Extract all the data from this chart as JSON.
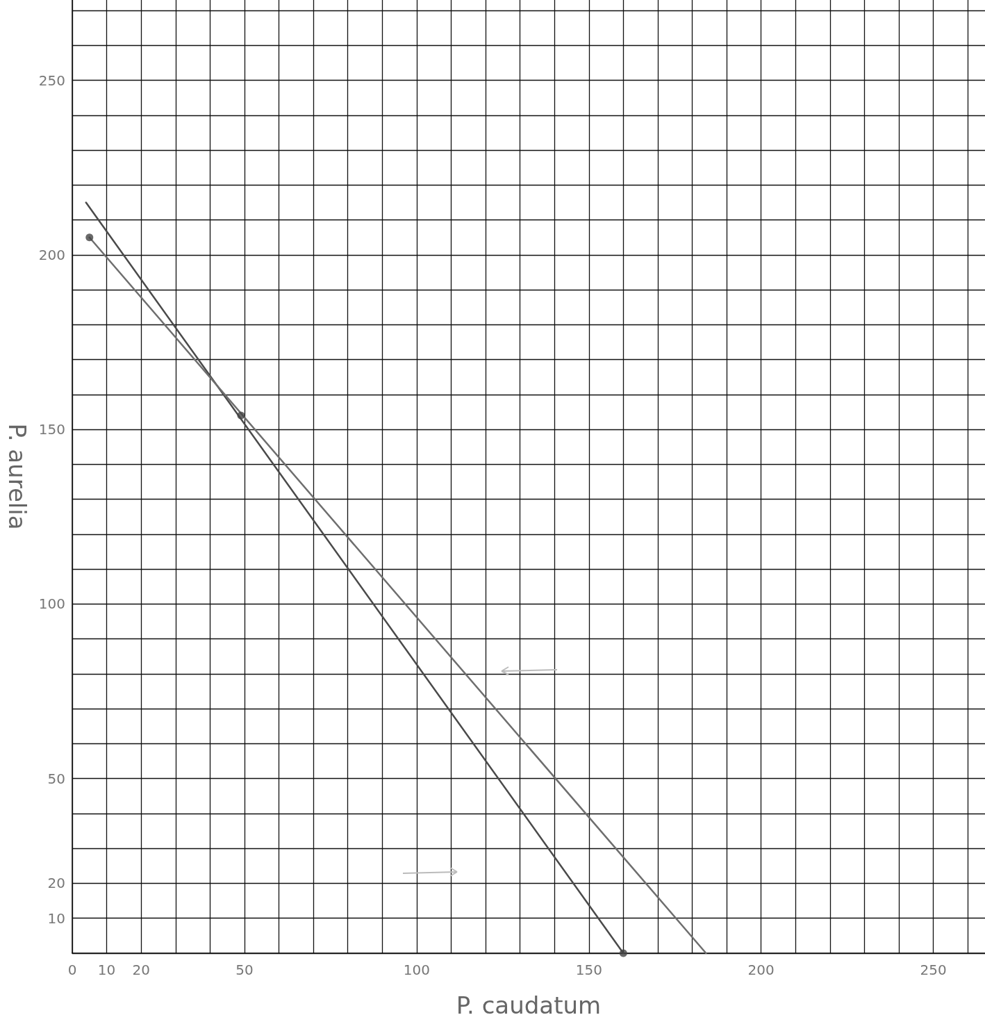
{
  "chart_data": {
    "type": "line",
    "xlabel": "P. caudatum",
    "ylabel": "P. aurelia",
    "xlim": [
      0,
      265
    ],
    "ylim": [
      0,
      273
    ],
    "xticks": [
      0,
      10,
      20,
      {
        "value": 30,
        "label": null
      },
      {
        "value": 40,
        "label": null
      },
      50,
      {
        "value": 60,
        "label": null
      },
      {
        "value": 70,
        "label": null
      },
      {
        "value": 80,
        "label": null
      },
      {
        "value": 90,
        "label": null
      },
      100,
      {
        "value": 110,
        "label": null
      },
      {
        "value": 120,
        "label": null
      },
      {
        "value": 130,
        "label": null
      },
      {
        "value": 140,
        "label": null
      },
      150,
      {
        "value": 160,
        "label": null
      },
      {
        "value": 170,
        "label": null
      },
      {
        "value": 180,
        "label": null
      },
      {
        "value": 190,
        "label": null
      },
      200,
      {
        "value": 210,
        "label": null
      },
      {
        "value": 220,
        "label": null
      },
      {
        "value": 230,
        "label": null
      },
      {
        "value": 240,
        "label": null
      },
      250,
      {
        "value": 260,
        "label": null
      }
    ],
    "yticks": [
      {
        "value": 0,
        "label": null
      },
      10,
      20,
      {
        "value": 30,
        "label": null
      },
      {
        "value": 40,
        "label": null
      },
      50,
      {
        "value": 60,
        "label": null
      },
      {
        "value": 70,
        "label": null
      },
      {
        "value": 80,
        "label": null
      },
      {
        "value": 90,
        "label": null
      },
      100,
      {
        "value": 110,
        "label": null
      },
      {
        "value": 120,
        "label": null
      },
      {
        "value": 130,
        "label": null
      },
      {
        "value": 140,
        "label": null
      },
      150,
      {
        "value": 160,
        "label": null
      },
      {
        "value": 170,
        "label": null
      },
      {
        "value": 180,
        "label": null
      },
      {
        "value": 190,
        "label": null
      },
      200,
      {
        "value": 210,
        "label": null
      },
      {
        "value": 220,
        "label": null
      },
      {
        "value": 230,
        "label": null
      },
      {
        "value": 240,
        "label": null
      },
      250,
      {
        "value": 260,
        "label": null
      },
      {
        "value": 270,
        "label": null
      }
    ],
    "grid": true,
    "line_style": "solid",
    "series": [
      {
        "color": "#4a4a4a",
        "marker": "none",
        "x": [
          4,
          160
        ],
        "values": [
          215,
          0
        ]
      },
      {
        "color": "#6e6e6e",
        "marker": "none",
        "x": [
          5,
          184
        ],
        "values": [
          205,
          0
        ]
      },
      {
        "type": "scatter",
        "color": "#444444",
        "marker": "circle",
        "x": [
          5,
          49,
          160
        ],
        "values": [
          205,
          154,
          0
        ]
      }
    ]
  }
}
